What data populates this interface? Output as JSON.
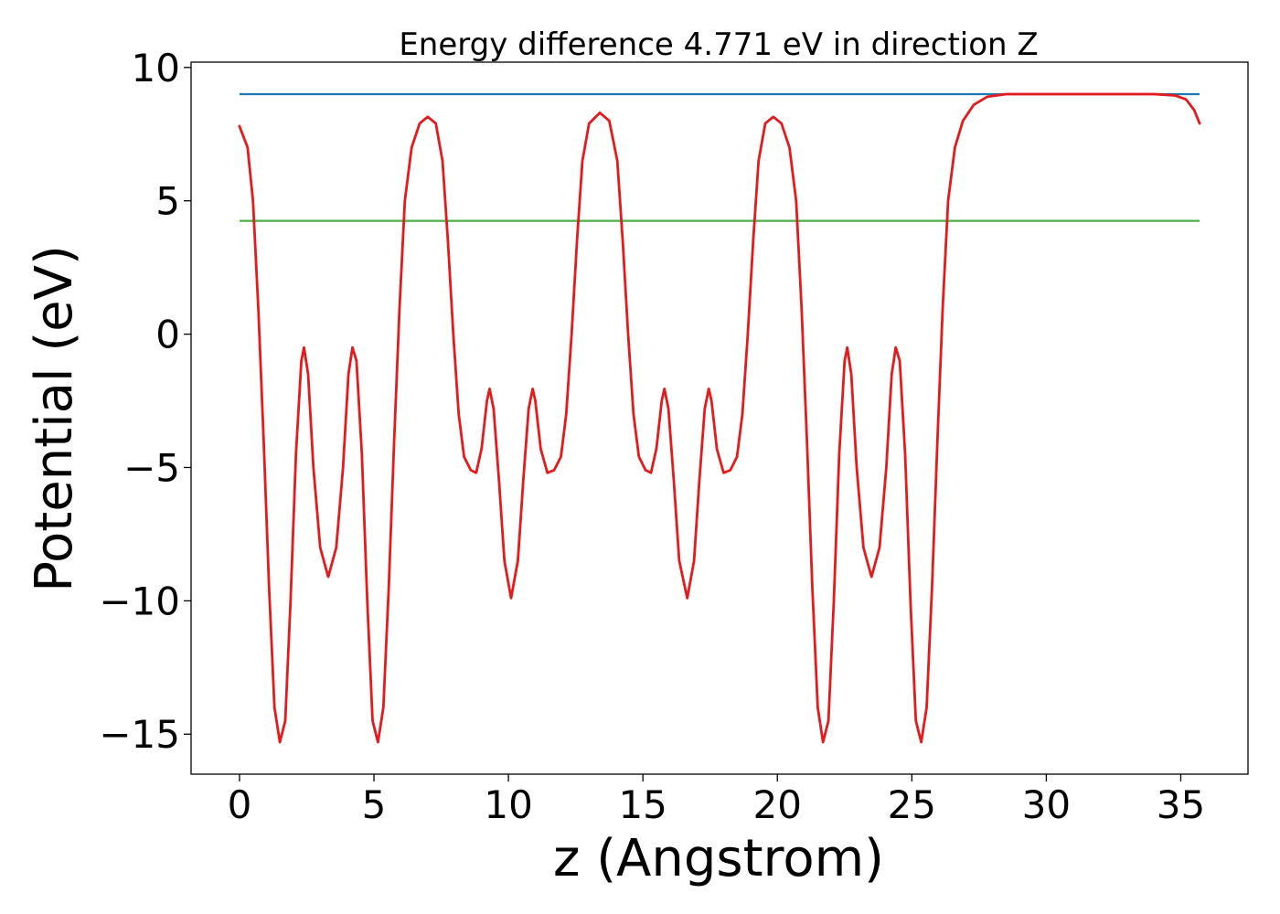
{
  "chart_data": {
    "type": "line",
    "title": "Energy difference 4.771 eV in direction Z",
    "xlabel": "z (Angstrom)",
    "ylabel": "Potential (eV)",
    "xlim": [
      -1.8,
      37.5
    ],
    "ylim": [
      -16.5,
      10.2
    ],
    "xticks": [
      0,
      5,
      10,
      15,
      20,
      25,
      30,
      35
    ],
    "yticks": [
      -15,
      -10,
      -5,
      0,
      5,
      10
    ],
    "ytick_labels": [
      "−15",
      "−10",
      "−5",
      "0",
      "5",
      "10"
    ],
    "grid": false,
    "colors": {
      "potential": "#e41a1c",
      "vacuum": "#1f77b4",
      "fermi": "#4daf4a"
    },
    "series": [
      {
        "key": "vacuum",
        "type": "hline",
        "y": 9.0,
        "x_range": [
          0,
          35.7
        ]
      },
      {
        "key": "fermi",
        "type": "hline",
        "y": 4.25,
        "x_range": [
          0,
          35.7
        ]
      },
      {
        "key": "potential",
        "type": "line",
        "points": [
          [
            0,
            7.8
          ],
          [
            0.3,
            7.0
          ],
          [
            0.5,
            5.0
          ],
          [
            0.7,
            1.0
          ],
          [
            0.9,
            -4.0
          ],
          [
            1.1,
            -9.5
          ],
          [
            1.3,
            -14.0
          ],
          [
            1.5,
            -15.3
          ],
          [
            1.7,
            -14.5
          ],
          [
            1.9,
            -10.0
          ],
          [
            2.1,
            -4.5
          ],
          [
            2.3,
            -1.0
          ],
          [
            2.4,
            -0.5
          ],
          [
            2.55,
            -1.5
          ],
          [
            2.75,
            -5.0
          ],
          [
            3.0,
            -8.0
          ],
          [
            3.3,
            -9.1
          ],
          [
            3.6,
            -8.0
          ],
          [
            3.85,
            -5.0
          ],
          [
            4.05,
            -1.5
          ],
          [
            4.2,
            -0.5
          ],
          [
            4.35,
            -1.0
          ],
          [
            4.55,
            -4.5
          ],
          [
            4.75,
            -10.0
          ],
          [
            4.95,
            -14.5
          ],
          [
            5.15,
            -15.3
          ],
          [
            5.35,
            -14.0
          ],
          [
            5.55,
            -9.5
          ],
          [
            5.75,
            -4.0
          ],
          [
            5.95,
            1.0
          ],
          [
            6.15,
            5.0
          ],
          [
            6.4,
            7.0
          ],
          [
            6.7,
            7.9
          ],
          [
            7.0,
            8.15
          ],
          [
            7.3,
            7.9
          ],
          [
            7.55,
            6.5
          ],
          [
            7.75,
            3.5
          ],
          [
            7.95,
            0.0
          ],
          [
            8.15,
            -3.0
          ],
          [
            8.35,
            -4.6
          ],
          [
            8.6,
            -5.1
          ],
          [
            8.8,
            -5.2
          ],
          [
            9.0,
            -4.3
          ],
          [
            9.2,
            -2.5
          ],
          [
            9.3,
            -2.05
          ],
          [
            9.45,
            -2.8
          ],
          [
            9.65,
            -5.5
          ],
          [
            9.85,
            -8.5
          ],
          [
            10.1,
            -9.9
          ],
          [
            10.35,
            -8.5
          ],
          [
            10.55,
            -5.5
          ],
          [
            10.75,
            -2.8
          ],
          [
            10.9,
            -2.05
          ],
          [
            11.0,
            -2.5
          ],
          [
            11.2,
            -4.3
          ],
          [
            11.45,
            -5.2
          ],
          [
            11.7,
            -5.1
          ],
          [
            11.95,
            -4.6
          ],
          [
            12.15,
            -3.0
          ],
          [
            12.35,
            0.0
          ],
          [
            12.55,
            3.5
          ],
          [
            12.75,
            6.5
          ],
          [
            13.0,
            7.9
          ],
          [
            13.4,
            8.3
          ],
          [
            13.75,
            8.0
          ],
          [
            14.05,
            6.5
          ],
          [
            14.25,
            3.5
          ],
          [
            14.45,
            0.0
          ],
          [
            14.65,
            -3.0
          ],
          [
            14.85,
            -4.6
          ],
          [
            15.1,
            -5.1
          ],
          [
            15.3,
            -5.2
          ],
          [
            15.5,
            -4.3
          ],
          [
            15.7,
            -2.5
          ],
          [
            15.8,
            -2.05
          ],
          [
            15.95,
            -2.8
          ],
          [
            16.15,
            -5.5
          ],
          [
            16.35,
            -8.5
          ],
          [
            16.65,
            -9.9
          ],
          [
            16.9,
            -8.5
          ],
          [
            17.1,
            -5.5
          ],
          [
            17.3,
            -2.8
          ],
          [
            17.45,
            -2.05
          ],
          [
            17.55,
            -2.5
          ],
          [
            17.75,
            -4.3
          ],
          [
            18.0,
            -5.2
          ],
          [
            18.25,
            -5.1
          ],
          [
            18.5,
            -4.6
          ],
          [
            18.7,
            -3.0
          ],
          [
            18.9,
            0.0
          ],
          [
            19.1,
            3.5
          ],
          [
            19.3,
            6.5
          ],
          [
            19.55,
            7.9
          ],
          [
            19.85,
            8.15
          ],
          [
            20.15,
            7.9
          ],
          [
            20.45,
            7.0
          ],
          [
            20.7,
            5.0
          ],
          [
            20.9,
            1.0
          ],
          [
            21.1,
            -4.0
          ],
          [
            21.3,
            -9.5
          ],
          [
            21.5,
            -14.0
          ],
          [
            21.7,
            -15.3
          ],
          [
            21.9,
            -14.5
          ],
          [
            22.1,
            -10.0
          ],
          [
            22.3,
            -4.5
          ],
          [
            22.5,
            -1.0
          ],
          [
            22.6,
            -0.5
          ],
          [
            22.75,
            -1.5
          ],
          [
            22.95,
            -5.0
          ],
          [
            23.2,
            -8.0
          ],
          [
            23.5,
            -9.1
          ],
          [
            23.8,
            -8.0
          ],
          [
            24.05,
            -5.0
          ],
          [
            24.25,
            -1.5
          ],
          [
            24.4,
            -0.5
          ],
          [
            24.55,
            -1.0
          ],
          [
            24.75,
            -4.5
          ],
          [
            24.95,
            -10.0
          ],
          [
            25.15,
            -14.5
          ],
          [
            25.35,
            -15.3
          ],
          [
            25.55,
            -14.0
          ],
          [
            25.75,
            -9.5
          ],
          [
            25.95,
            -4.0
          ],
          [
            26.15,
            1.0
          ],
          [
            26.35,
            5.0
          ],
          [
            26.6,
            7.0
          ],
          [
            26.9,
            8.0
          ],
          [
            27.3,
            8.6
          ],
          [
            27.8,
            8.9
          ],
          [
            28.5,
            9.0
          ],
          [
            30,
            9.0
          ],
          [
            32,
            9.0
          ],
          [
            34,
            9.0
          ],
          [
            34.8,
            8.95
          ],
          [
            35.2,
            8.8
          ],
          [
            35.5,
            8.4
          ],
          [
            35.7,
            7.9
          ]
        ]
      }
    ]
  }
}
